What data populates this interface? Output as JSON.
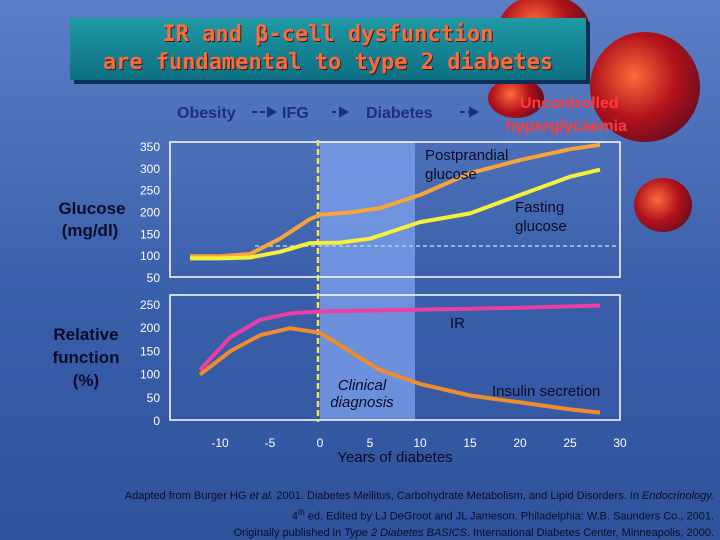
{
  "title": {
    "line1": "IR and β-cell dysfunction",
    "line2": "are fundamental to type 2 diabetes"
  },
  "stages": {
    "obesity": "Obesity",
    "ifg": "IFG",
    "diabetes": "Diabetes",
    "uncontrolled_line1": "Uncontrolled",
    "uncontrolled_line2": "hyperglycaemia"
  },
  "colors": {
    "postprandial": "#f7a43a",
    "fasting": "#f3f13a",
    "ir": "#ec3fa6",
    "insulin": "#f08c2c",
    "clinical_band": "#7fa2ee",
    "clinical_line": "#f2e64a"
  },
  "chart_data": [
    {
      "type": "line",
      "ylabel_line1": "Glucose",
      "ylabel_line2": "(mg/dl)",
      "ylim": [
        50,
        350
      ],
      "yticks": [
        "350",
        "300",
        "250",
        "200",
        "150",
        "100",
        "50"
      ],
      "xlim": [
        -15,
        30
      ],
      "series": [
        {
          "name": "Postprandial glucose",
          "label_line1": "Postprandial",
          "label_line2": "glucose",
          "x": [
            -13,
            -10,
            -7,
            -4,
            -1,
            0,
            3,
            6,
            10,
            15,
            20,
            25,
            28
          ],
          "y": [
            100,
            100,
            105,
            140,
            185,
            195,
            200,
            210,
            240,
            290,
            320,
            345,
            355
          ]
        },
        {
          "name": "Fasting glucose",
          "label_line1": "Fasting",
          "label_line2": "glucose",
          "x": [
            -13,
            -10,
            -7,
            -4,
            -1,
            2,
            5,
            10,
            15,
            20,
            25,
            28
          ],
          "y": [
            95,
            95,
            97,
            110,
            130,
            131,
            140,
            178,
            198,
            240,
            282,
            298
          ]
        }
      ]
    },
    {
      "type": "line",
      "ylabel_line1": "Relative",
      "ylabel_line2": "function",
      "ylabel_line3": "(%)",
      "ylim": [
        0,
        250
      ],
      "yticks": [
        "250",
        "200",
        "150",
        "100",
        "50",
        "0"
      ],
      "xlim": [
        -15,
        30
      ],
      "xticks": [
        "-10",
        "-5",
        "0",
        "5",
        "10",
        "15",
        "20",
        "25",
        "30"
      ],
      "xlabel": "Years of diabetes",
      "series": [
        {
          "name": "IR",
          "label": "IR",
          "x": [
            -12,
            -9,
            -6,
            -3,
            0,
            5,
            10,
            15,
            20,
            25,
            28
          ],
          "y": [
            110,
            180,
            218,
            232,
            236,
            238,
            240,
            242,
            244,
            247,
            249
          ]
        },
        {
          "name": "Insulin secretion",
          "label": "Insulin secretion",
          "x": [
            -12,
            -9,
            -6,
            -3,
            0,
            3,
            6,
            10,
            15,
            20,
            25,
            28
          ],
          "y": [
            100,
            150,
            185,
            200,
            190,
            150,
            110,
            80,
            55,
            40,
            25,
            18
          ]
        }
      ],
      "annotation_line1": "Clinical",
      "annotation_line2": "diagnosis"
    }
  ],
  "credit": {
    "line1_a": "Adapted from Burger HG ",
    "line1_b": "et al.",
    "line1_c": " 2001. Diabetes Mellitus, Carbohydrate Metabolism, and Lipid Disorders. In ",
    "line1_d": "Endocrinology.",
    "line2_a": "4",
    "line2_b": "th",
    "line2_c": " ed. Edited by LJ DeGroot and JL Jameson. Philadelphia: W.B. Saunders Co., 2001.",
    "line3_a": "Originally published in ",
    "line3_b": "Type 2 Diabetes BASICS",
    "line3_c": ". International Diabetes Center, Minneapolis, 2000."
  }
}
